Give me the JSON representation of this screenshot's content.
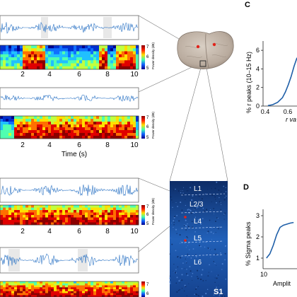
{
  "panel_labels": {
    "c": "C",
    "d": "D"
  },
  "colorbar": {
    "label": "Power density (dB)",
    "ticks": [
      "7",
      "6",
      "5"
    ]
  },
  "time_axis": {
    "ticks": [
      "2",
      "4",
      "6",
      "8",
      "10"
    ],
    "label": "Time (s)"
  },
  "layers": {
    "items": [
      "L1",
      "L2/3",
      "L4",
      "L5",
      "L6"
    ],
    "region": "S1"
  },
  "colors": {
    "trace": "#2a72c4",
    "curve": "#1f5fa8",
    "slice": "#2160b8"
  },
  "chart_data": [
    {
      "type": "line",
      "title": "",
      "ylabel": "% r peaks (10–15 Hz)",
      "xlabel": "r va",
      "yticks": [
        "0",
        "2",
        "4",
        "6"
      ],
      "xticks": [
        "0.4",
        "0.6"
      ],
      "xlim": [
        0.4,
        0.75
      ],
      "ylim": [
        0,
        7
      ],
      "x": [
        0.45,
        0.5,
        0.55,
        0.6,
        0.63,
        0.66,
        0.69,
        0.72,
        0.75
      ],
      "y": [
        0.05,
        0.15,
        0.4,
        0.9,
        1.5,
        2.3,
        3.2,
        4.3,
        5.2
      ]
    },
    {
      "type": "line",
      "title": "",
      "ylabel": "% Sigma peaks",
      "xlabel": "Amplit",
      "yticks": [
        "1",
        "2",
        "3"
      ],
      "xticks": [
        "10"
      ],
      "xlim": [
        0,
        1
      ],
      "ylim": [
        0.5,
        3.3
      ],
      "x": [
        0.1,
        0.2,
        0.3,
        0.4,
        0.5,
        0.6,
        0.7,
        0.8,
        0.9
      ],
      "y": [
        1.0,
        1.2,
        1.6,
        2.1,
        2.45,
        2.55,
        2.6,
        2.65,
        2.68
      ]
    }
  ]
}
